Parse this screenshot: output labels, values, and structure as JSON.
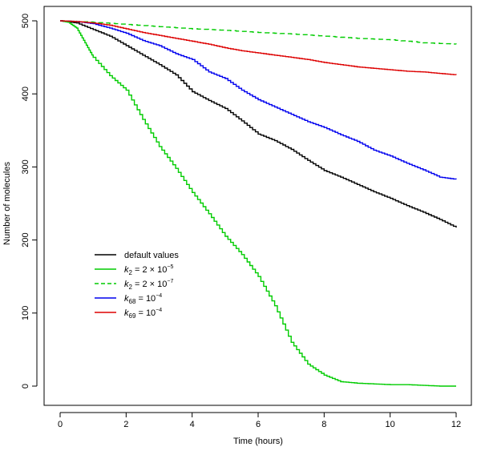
{
  "chart_data": {
    "type": "line",
    "title": "",
    "xlabel": "Time (hours)",
    "ylabel": "Number of molecules",
    "xlim": [
      0,
      12
    ],
    "ylim": [
      0,
      500
    ],
    "xticks": [
      0,
      2,
      4,
      6,
      8,
      10,
      12
    ],
    "yticks": [
      0,
      100,
      200,
      300,
      400,
      500
    ],
    "grid": false,
    "legend_position": "middle-left",
    "series": [
      {
        "name": "default values",
        "label": {
          "pre": "default values",
          "sub": "",
          "mid": "",
          "sup": ""
        },
        "color": "#000000",
        "dash": "solid",
        "x": [
          0,
          0.5,
          1,
          1.5,
          2,
          2.5,
          3,
          3.5,
          4,
          4.5,
          5,
          5.5,
          6,
          6.5,
          7,
          7.5,
          8,
          8.5,
          9,
          9.5,
          10,
          10.5,
          11,
          11.5,
          12
        ],
        "y": [
          500,
          497,
          488,
          479,
          466,
          453,
          440,
          426,
          403,
          391,
          380,
          363,
          345,
          336,
          324,
          309,
          295,
          286,
          276,
          266,
          257,
          247,
          238,
          228,
          217
        ]
      },
      {
        "name": "k2 = 2×10^-5",
        "label": {
          "pre": "k",
          "sub": "2",
          "mid": " = 2 × 10",
          "sup": "−5"
        },
        "color": "#00cc00",
        "dash": "solid",
        "x": [
          0,
          0.25,
          0.5,
          0.75,
          1,
          1.5,
          2,
          2.5,
          3,
          3.5,
          4,
          4.5,
          5,
          5.5,
          6,
          6.5,
          7,
          7.5,
          8,
          8.5,
          9,
          9.5,
          10,
          10.5,
          11,
          11.5,
          12
        ],
        "y": [
          500,
          498,
          490,
          470,
          450,
          425,
          405,
          365,
          328,
          298,
          265,
          236,
          205,
          180,
          150,
          110,
          60,
          30,
          15,
          6,
          4,
          3,
          2,
          2,
          1,
          0,
          0
        ]
      },
      {
        "name": "k2 = 2×10^-7",
        "label": {
          "pre": "k",
          "sub": "2",
          "mid": " = 2 × 10",
          "sup": "−7"
        },
        "color": "#00cc00",
        "dash": "dashed",
        "x": [
          0,
          1,
          2,
          3,
          4,
          5,
          6,
          7,
          8,
          9,
          10,
          11,
          12
        ],
        "y": [
          500,
          498,
          495,
          492,
          489,
          487,
          484,
          482,
          479,
          476,
          474,
          470,
          468
        ]
      },
      {
        "name": "k68 = 10^-4",
        "label": {
          "pre": "k",
          "sub": "68",
          "mid": " = 10",
          "sup": "−4"
        },
        "color": "#0000ee",
        "dash": "solid",
        "x": [
          0,
          0.5,
          1,
          1.5,
          2,
          2.5,
          3,
          3.5,
          4,
          4.5,
          5,
          5.5,
          6,
          6.5,
          7,
          7.5,
          8,
          8.5,
          9,
          9.5,
          10,
          10.5,
          11,
          11.5,
          12
        ],
        "y": [
          500,
          499,
          496,
          490,
          483,
          473,
          466,
          455,
          447,
          430,
          421,
          405,
          392,
          382,
          372,
          362,
          354,
          344,
          335,
          323,
          315,
          305,
          296,
          286,
          283
        ]
      },
      {
        "name": "k69 = 10^-4",
        "label": {
          "pre": "k",
          "sub": "69",
          "mid": " = 10",
          "sup": "−4"
        },
        "color": "#dd0000",
        "dash": "solid",
        "x": [
          0,
          0.5,
          1,
          1.5,
          2,
          2.5,
          3,
          3.5,
          4,
          4.5,
          5,
          5.5,
          6,
          6.5,
          7,
          7.5,
          8,
          8.5,
          9,
          9.5,
          10,
          10.5,
          11,
          11.5,
          12
        ],
        "y": [
          500,
          499,
          497,
          494,
          489,
          484,
          480,
          476,
          472,
          468,
          463,
          459,
          456,
          453,
          450,
          447,
          443,
          440,
          437,
          435,
          433,
          431,
          430,
          428,
          426
        ]
      }
    ]
  }
}
